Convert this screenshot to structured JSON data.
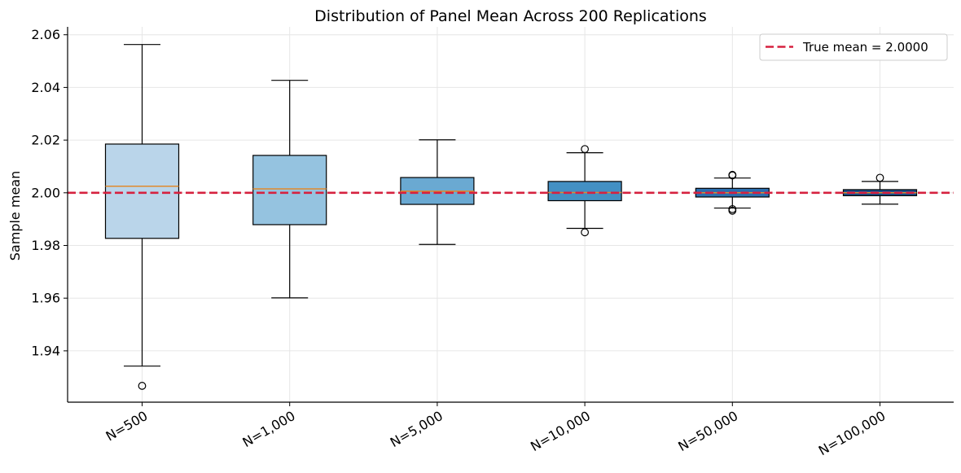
{
  "chart_data": {
    "type": "box",
    "title": "Distribution of Panel Mean Across 200 Replications",
    "xlabel": "",
    "ylabel": "Sample mean",
    "ylim": [
      1.9205,
      2.063
    ],
    "yticks": [
      1.94,
      1.96,
      1.98,
      2.0,
      2.02,
      2.04,
      2.06
    ],
    "ytick_labels": [
      "1.94",
      "1.96",
      "1.98",
      "2.00",
      "2.02",
      "2.04",
      "2.06"
    ],
    "grid": true,
    "legend_position": "top-right",
    "reference_line": {
      "label": "True mean = 2.0000",
      "value": 2.0,
      "color": "#d6213f",
      "style": "dashed"
    },
    "categories": [
      "N=500",
      "N=1,000",
      "N=5,000",
      "N=10,000",
      "N=50,000",
      "N=100,000"
    ],
    "boxes": [
      {
        "label": "N=500",
        "q1": 1.9827,
        "median": 2.0025,
        "q3": 2.0185,
        "whisker_low": 1.9342,
        "whisker_high": 2.0563,
        "outliers": [
          1.9267
        ],
        "color": "#bad5ea"
      },
      {
        "label": "N=1,000",
        "q1": 1.9879,
        "median": 2.0015,
        "q3": 2.0142,
        "whisker_low": 1.9601,
        "whisker_high": 2.0427,
        "outliers": [],
        "color": "#95c3e0"
      },
      {
        "label": "N=5,000",
        "q1": 1.9956,
        "median": 2.0006,
        "q3": 2.0058,
        "whisker_low": 1.9804,
        "whisker_high": 2.0201,
        "outliers": [],
        "color": "#6aa9d2"
      },
      {
        "label": "N=10,000",
        "q1": 1.997,
        "median": 2.0001,
        "q3": 2.0043,
        "whisker_low": 1.9865,
        "whisker_high": 2.0152,
        "outliers": [
          2.0166,
          1.985
        ],
        "color": "#4390c4"
      },
      {
        "label": "N=50,000",
        "q1": 1.9984,
        "median": 2.0,
        "q3": 2.0017,
        "whisker_low": 1.9942,
        "whisker_high": 2.0056,
        "outliers": [
          2.0068,
          2.0066,
          1.9938,
          1.9932
        ],
        "color": "#2b6fb0"
      },
      {
        "label": "N=100,000",
        "q1": 1.9989,
        "median": 2.0,
        "q3": 2.0012,
        "whisker_low": 1.9957,
        "whisker_high": 2.0043,
        "outliers": [
          2.0057
        ],
        "color": "#18508f"
      }
    ],
    "median_color": "#e08a2e"
  }
}
